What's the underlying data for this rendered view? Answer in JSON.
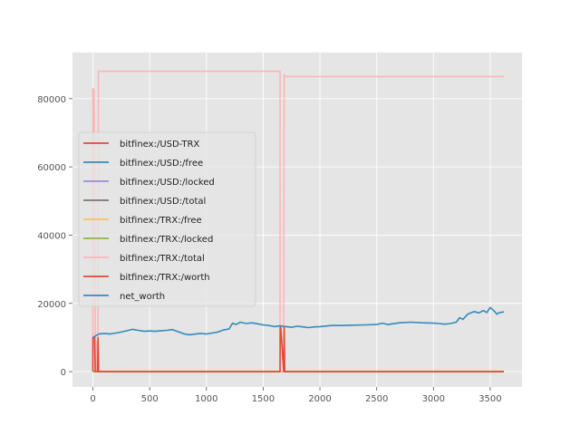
{
  "chart_data": {
    "type": "line",
    "title": "",
    "xlabel": "",
    "ylabel": "",
    "xlim": [
      -180,
      3780
    ],
    "ylim": [
      -4500,
      93500
    ],
    "grid": true,
    "legend_position": "center-left",
    "x_ticks": [
      0,
      500,
      1000,
      1500,
      2000,
      2500,
      3000,
      3500
    ],
    "y_ticks": [
      0,
      20000,
      40000,
      60000,
      80000
    ],
    "x_tick_labels": [
      "0",
      "500",
      "1000",
      "1500",
      "2000",
      "2500",
      "3000",
      "3500"
    ],
    "y_tick_labels": [
      "0",
      "20000",
      "40000",
      "60000",
      "80000"
    ],
    "series": [
      {
        "name": "bitfinex:/USD-TRX",
        "color": "#E24A33",
        "x": [
          0,
          3620
        ],
        "y": [
          0,
          0
        ]
      },
      {
        "name": "bitfinex:/USD:/free",
        "color": "#348ABD",
        "x": [
          0,
          3620
        ],
        "y": [
          0,
          0
        ]
      },
      {
        "name": "bitfinex:/USD:/locked",
        "color": "#988ED5",
        "x": [
          0,
          3620
        ],
        "y": [
          0,
          0
        ]
      },
      {
        "name": "bitfinex:/USD:/total",
        "color": "#777777",
        "x": [
          0,
          3620
        ],
        "y": [
          0,
          0
        ]
      },
      {
        "name": "bitfinex:/TRX:/free",
        "color": "#FBC15E",
        "x": [
          0,
          3620
        ],
        "y": [
          0,
          0
        ]
      },
      {
        "name": "bitfinex:/TRX:/locked",
        "color": "#8EBA42",
        "x": [
          0,
          3620
        ],
        "y": [
          0,
          0
        ]
      },
      {
        "name": "bitfinex:/TRX:/total",
        "color": "#FFB5B8",
        "x": [
          0,
          0,
          10,
          20,
          25,
          30,
          35,
          40,
          45,
          48,
          1648,
          1648,
          1655,
          1680,
          1685,
          1690,
          3620
        ],
        "y": [
          0,
          83000,
          82500,
          10000,
          0,
          0,
          9000,
          0,
          0,
          88000,
          88000,
          0,
          0,
          0,
          87000,
          86500,
          86500
        ]
      },
      {
        "name": "bitfinex:/TRX:/worth",
        "color": "#E24A33",
        "x": [
          0,
          0,
          15,
          20,
          25,
          40,
          45,
          50,
          55,
          1648,
          1650,
          1655,
          1680,
          1685,
          1690,
          3620
        ],
        "y": [
          0,
          10000,
          10000,
          0,
          0,
          0,
          10000,
          0,
          0,
          0,
          13000,
          13000,
          0,
          13000,
          0,
          0
        ]
      },
      {
        "name": "net_worth",
        "color": "#348ABD",
        "x": [
          0,
          50,
          100,
          150,
          200,
          250,
          300,
          350,
          400,
          450,
          500,
          550,
          600,
          650,
          700,
          750,
          800,
          850,
          900,
          950,
          1000,
          1050,
          1100,
          1150,
          1200,
          1230,
          1260,
          1300,
          1350,
          1400,
          1450,
          1500,
          1550,
          1600,
          1650,
          1700,
          1750,
          1800,
          1850,
          1900,
          1950,
          2000,
          2100,
          2200,
          2300,
          2400,
          2500,
          2550,
          2600,
          2700,
          2800,
          2900,
          3000,
          3050,
          3100,
          3150,
          3200,
          3230,
          3260,
          3300,
          3330,
          3360,
          3400,
          3440,
          3470,
          3500,
          3520,
          3540,
          3560,
          3580,
          3620
        ],
        "y": [
          10000,
          11000,
          11200,
          11000,
          11300,
          11600,
          12000,
          12400,
          12100,
          11800,
          11900,
          11800,
          12000,
          12100,
          12300,
          11700,
          11100,
          10800,
          11000,
          11200,
          11000,
          11300,
          11600,
          12200,
          12500,
          14200,
          13800,
          14500,
          14100,
          14300,
          14000,
          13700,
          13500,
          13200,
          13400,
          13200,
          13000,
          13300,
          13100,
          12900,
          13100,
          13200,
          13500,
          13500,
          13600,
          13700,
          13800,
          14200,
          13800,
          14300,
          14500,
          14300,
          14200,
          14100,
          13900,
          14100,
          14500,
          15800,
          15300,
          16800,
          17200,
          17600,
          17200,
          17900,
          17300,
          18800,
          18200,
          17600,
          16800,
          17300,
          17500
        ]
      }
    ]
  }
}
